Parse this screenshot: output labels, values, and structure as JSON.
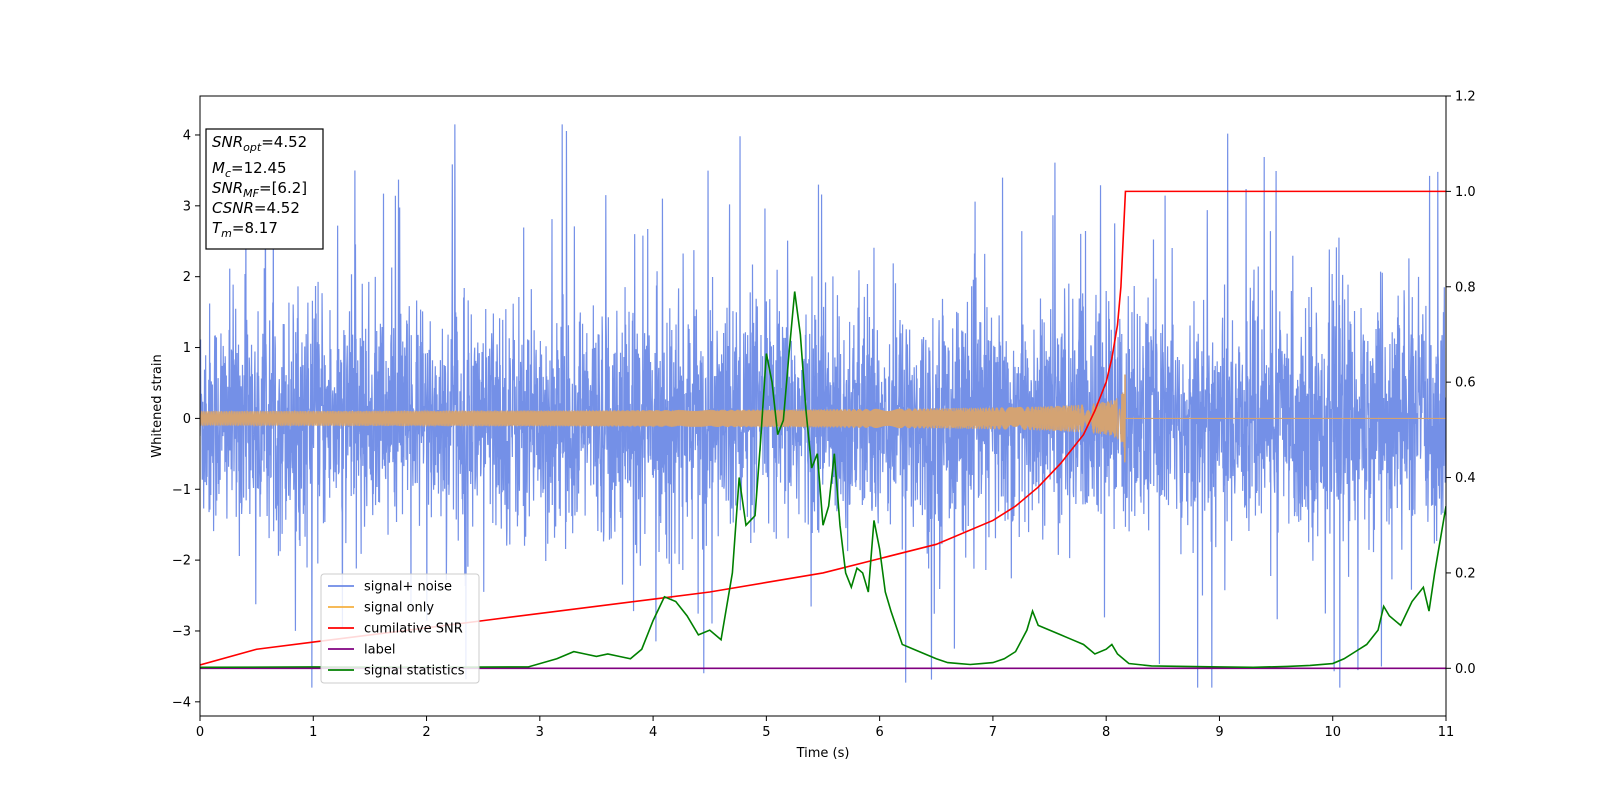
{
  "chart_data": {
    "type": "line",
    "xlabel": "Time (s)",
    "ylabel_left": "Whitened strain",
    "ylabel_right": "",
    "xlim": [
      0,
      11
    ],
    "ylim_left": [
      -4.2,
      4.55
    ],
    "ylim_right": [
      -0.1,
      1.2
    ],
    "xticks": [
      "0",
      "1",
      "2",
      "3",
      "4",
      "5",
      "6",
      "7",
      "8",
      "9",
      "10",
      "11"
    ],
    "yticks_left": [
      "4",
      "3",
      "2",
      "1",
      "0",
      "−1",
      "−2",
      "−3",
      "−4"
    ],
    "yticks_right": [
      "1.2",
      "1.0",
      "0.8",
      "0.6",
      "0.4",
      "0.2",
      "0.0"
    ],
    "grid": false,
    "legend_position": "lower-left",
    "legend": [
      {
        "label": "signal+ noise",
        "color": "#6d8ae6"
      },
      {
        "label": "signal only",
        "color": "#f5b041"
      },
      {
        "label": "cumilative SNR",
        "color": "#ff0000"
      },
      {
        "label": "label",
        "color": "#800080"
      },
      {
        "label": "signal statistics",
        "color": "#008000"
      }
    ],
    "info_box": [
      {
        "base": "SNR",
        "sub": "opt",
        "rest": "=4.52"
      },
      {
        "base": "M",
        "sub": "c",
        "rest": "=12.45"
      },
      {
        "base": "SNR",
        "sub": "MF",
        "rest": "=[6.2]"
      },
      {
        "base": "CSNR",
        "sub": "",
        "rest": "=4.52"
      },
      {
        "base": "T",
        "sub": "m",
        "rest": "=8.17"
      }
    ],
    "series": [
      {
        "name": "signal+ noise",
        "axis": "left",
        "style": "noise",
        "color": "#6d8ae6",
        "t_range": [
          0,
          11
        ],
        "amplitude_sigma": 0.8,
        "peak_range": [
          -3.8,
          4.15
        ]
      },
      {
        "name": "signal only",
        "axis": "left",
        "style": "chirp",
        "color": "#d4a373",
        "t_range": [
          0,
          11
        ],
        "merger_time": 8.17,
        "peak_amplitude": 0.62
      },
      {
        "name": "cumilative SNR",
        "axis": "right",
        "color": "#ff0000",
        "x": [
          0,
          0.5,
          1,
          1.5,
          2,
          2.5,
          3,
          3.5,
          4,
          4.5,
          5,
          5.5,
          6,
          6.5,
          7,
          7.2,
          7.4,
          7.6,
          7.8,
          7.9,
          8.0,
          8.05,
          8.1,
          8.13,
          8.15,
          8.17,
          9,
          10,
          11
        ],
        "y": [
          0.007,
          0.04,
          0.055,
          0.07,
          0.085,
          0.1,
          0.115,
          0.13,
          0.145,
          0.16,
          0.18,
          0.2,
          0.23,
          0.26,
          0.31,
          0.34,
          0.38,
          0.43,
          0.49,
          0.54,
          0.6,
          0.65,
          0.72,
          0.8,
          0.9,
          1.0,
          1.0,
          1.0,
          1.0
        ]
      },
      {
        "name": "label",
        "axis": "right",
        "color": "#800080",
        "x": [
          0,
          11
        ],
        "y": [
          0.0,
          0.0
        ]
      },
      {
        "name": "signal statistics",
        "axis": "right",
        "color": "#008000",
        "x": [
          0,
          1,
          2,
          2.9,
          3.15,
          3.3,
          3.4,
          3.5,
          3.6,
          3.7,
          3.8,
          3.9,
          4.0,
          4.1,
          4.2,
          4.3,
          4.4,
          4.5,
          4.6,
          4.7,
          4.76,
          4.82,
          4.9,
          4.95,
          5.0,
          5.05,
          5.1,
          5.15,
          5.2,
          5.25,
          5.3,
          5.35,
          5.4,
          5.45,
          5.5,
          5.55,
          5.6,
          5.65,
          5.7,
          5.75,
          5.8,
          5.85,
          5.9,
          5.95,
          6.0,
          6.05,
          6.1,
          6.2,
          6.3,
          6.4,
          6.5,
          6.6,
          6.7,
          6.8,
          6.9,
          7.0,
          7.1,
          7.2,
          7.3,
          7.35,
          7.4,
          7.5,
          7.6,
          7.7,
          7.8,
          7.9,
          8.0,
          8.05,
          8.1,
          8.2,
          8.4,
          8.7,
          9.0,
          9.3,
          9.6,
          9.8,
          10.0,
          10.1,
          10.2,
          10.3,
          10.4,
          10.45,
          10.5,
          10.6,
          10.7,
          10.8,
          10.85,
          10.9,
          11.0
        ],
        "y": [
          0.002,
          0.003,
          0.002,
          0.003,
          0.02,
          0.035,
          0.03,
          0.025,
          0.03,
          0.025,
          0.02,
          0.04,
          0.1,
          0.15,
          0.14,
          0.11,
          0.07,
          0.08,
          0.06,
          0.2,
          0.4,
          0.3,
          0.32,
          0.48,
          0.66,
          0.6,
          0.49,
          0.52,
          0.66,
          0.79,
          0.7,
          0.54,
          0.42,
          0.45,
          0.3,
          0.34,
          0.45,
          0.3,
          0.2,
          0.17,
          0.21,
          0.2,
          0.16,
          0.31,
          0.25,
          0.16,
          0.12,
          0.05,
          0.04,
          0.03,
          0.02,
          0.012,
          0.01,
          0.008,
          0.01,
          0.012,
          0.02,
          0.035,
          0.08,
          0.12,
          0.09,
          0.08,
          0.07,
          0.06,
          0.05,
          0.03,
          0.04,
          0.05,
          0.03,
          0.01,
          0.005,
          0.004,
          0.003,
          0.002,
          0.004,
          0.006,
          0.01,
          0.02,
          0.035,
          0.05,
          0.08,
          0.13,
          0.11,
          0.09,
          0.14,
          0.17,
          0.12,
          0.2,
          0.34
        ]
      }
    ]
  }
}
